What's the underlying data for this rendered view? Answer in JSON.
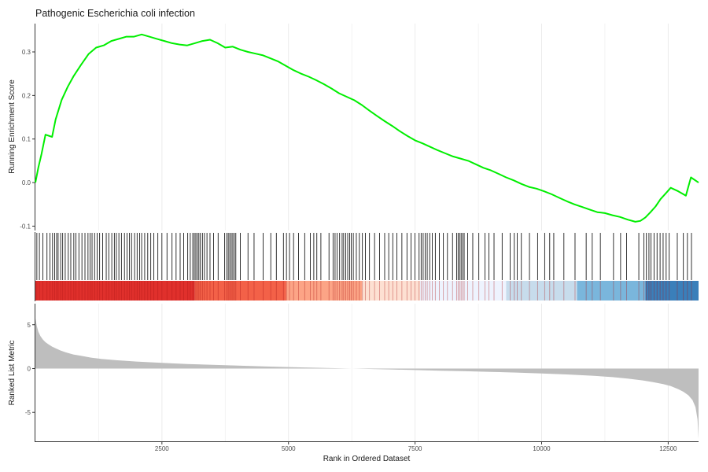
{
  "chart_data": {
    "type": "line",
    "title": "Pathogenic Escherichia coli infection",
    "xlabel": "Rank in Ordered Dataset",
    "xlim": [
      1,
      13100
    ],
    "x_ticks": [
      2500,
      5000,
      7500,
      10000,
      12500
    ],
    "x_tick_labels": [
      "2500",
      "5000",
      "7500",
      "10000",
      "12500"
    ],
    "grid": "vertical",
    "panels": [
      {
        "name": "running-score",
        "ylabel": "Running Enrichment Score",
        "ylim": [
          -0.11,
          0.365
        ],
        "y_ticks": [
          -0.1,
          0.0,
          0.1,
          0.2,
          0.3
        ],
        "y_tick_labels": [
          "-0.1",
          "0.0",
          "0.1",
          "0.2",
          "0.3"
        ],
        "line_color": "#00ee00",
        "series": [
          {
            "x": [
              1,
              60,
              120,
              200,
              330,
              400,
              520,
              640,
              760,
              900,
              1050,
              1200,
              1350,
              1500,
              1650,
              1800,
              1950,
              2100,
              2250,
              2400,
              2550,
              2700,
              2850,
              3000,
              3150,
              3300,
              3450,
              3600,
              3750,
              3900,
              4050,
              4200,
              4350,
              4500,
              4650,
              4800,
              4950,
              5100,
              5250,
              5400,
              5550,
              5700,
              5850,
              6000,
              6150,
              6300,
              6450,
              6600,
              6750,
              6900,
              7050,
              7200,
              7350,
              7500,
              7650,
              7800,
              7950,
              8100,
              8250,
              8400,
              8550,
              8700,
              8850,
              9000,
              9150,
              9300,
              9450,
              9600,
              9750,
              9900,
              10050,
              10200,
              10350,
              10500,
              10650,
              10800,
              10950,
              11100,
              11250,
              11400,
              11550,
              11700,
              11850,
              11950,
              12050,
              12150,
              12250,
              12350,
              12450,
              12550,
              12700,
              12850,
              12950,
              13100
            ],
            "values": [
              0.0,
              0.035,
              0.065,
              0.11,
              0.105,
              0.145,
              0.19,
              0.22,
              0.245,
              0.27,
              0.295,
              0.31,
              0.315,
              0.325,
              0.33,
              0.335,
              0.335,
              0.34,
              0.335,
              0.33,
              0.325,
              0.32,
              0.317,
              0.315,
              0.32,
              0.325,
              0.328,
              0.32,
              0.31,
              0.312,
              0.305,
              0.3,
              0.296,
              0.292,
              0.285,
              0.278,
              0.268,
              0.258,
              0.25,
              0.243,
              0.235,
              0.226,
              0.216,
              0.205,
              0.197,
              0.189,
              0.178,
              0.165,
              0.153,
              0.141,
              0.13,
              0.118,
              0.107,
              0.097,
              0.09,
              0.082,
              0.074,
              0.067,
              0.06,
              0.055,
              0.05,
              0.042,
              0.034,
              0.028,
              0.02,
              0.012,
              0.005,
              -0.003,
              -0.01,
              -0.014,
              -0.02,
              -0.027,
              -0.035,
              -0.043,
              -0.05,
              -0.056,
              -0.062,
              -0.068,
              -0.07,
              -0.075,
              -0.079,
              -0.085,
              -0.09,
              -0.088,
              -0.08,
              -0.068,
              -0.055,
              -0.038,
              -0.025,
              -0.012,
              -0.02,
              -0.03,
              0.012,
              0.0
            ]
          }
        ]
      },
      {
        "name": "gene-hits",
        "type": "rug",
        "hit_color": "#000000",
        "heat_colors": [
          "#e0302c",
          "#f36148",
          "#fca486",
          "#fde0d2",
          "#eef3fe",
          "#c7dcec",
          "#7ab6dc",
          "#3a7fba"
        ],
        "heat_boundaries": [
          1,
          3150,
          4950,
          6450,
          7600,
          9300,
          10700,
          12050,
          13100
        ]
      },
      {
        "name": "ranked-list",
        "ylabel": "Ranked List Metric",
        "ylim": [
          -8.3,
          7.4
        ],
        "y_ticks": [
          -5,
          0,
          5
        ],
        "y_tick_labels": [
          "-5",
          "0",
          "5"
        ],
        "fill_color": "#bebebe",
        "series": [
          {
            "x": [
              1,
              30,
              60,
              100,
              150,
              200,
              260,
              330,
              400,
              500,
              600,
              750,
              900,
              1100,
              1300,
              1600,
              2000,
              2500,
              3000,
              3500,
              4000,
              4500,
              5000,
              5500,
              6000,
              6500,
              7000,
              7500,
              8000,
              8500,
              9000,
              9500,
              10000,
              10500,
              11000,
              11400,
              11700,
              12000,
              12200,
              12400,
              12550,
              12700,
              12800,
              12900,
              12980,
              13040,
              13080,
              13100
            ],
            "values": [
              5.7,
              4.8,
              4.2,
              3.7,
              3.3,
              3.0,
              2.75,
              2.5,
              2.3,
              2.05,
              1.85,
              1.6,
              1.45,
              1.25,
              1.1,
              0.95,
              0.8,
              0.65,
              0.52,
              0.42,
              0.33,
              0.25,
              0.17,
              0.1,
              0.03,
              -0.04,
              -0.1,
              -0.17,
              -0.24,
              -0.31,
              -0.38,
              -0.46,
              -0.56,
              -0.67,
              -0.82,
              -0.98,
              -1.14,
              -1.36,
              -1.55,
              -1.78,
              -2.0,
              -2.35,
              -2.65,
              -3.05,
              -3.6,
              -4.4,
              -5.8,
              -8.0
            ]
          }
        ]
      }
    ],
    "gene_hit_ranks": [
      30,
      80,
      150,
      230,
      290,
      340,
      380,
      420,
      450,
      500,
      540,
      590,
      650,
      700,
      760,
      800,
      860,
      920,
      980,
      1040,
      1080,
      1120,
      1170,
      1220,
      1270,
      1330,
      1400,
      1450,
      1510,
      1560,
      1600,
      1650,
      1700,
      1760,
      1810,
      1860,
      1900,
      1960,
      2010,
      2060,
      2100,
      2160,
      2220,
      2280,
      2340,
      2420,
      2500,
      2600,
      2700,
      2780,
      2860,
      2930,
      3010,
      3060,
      3110,
      3140,
      3170,
      3200,
      3230,
      3260,
      3300,
      3340,
      3390,
      3450,
      3520,
      3610,
      3740,
      3780,
      3810,
      3840,
      3870,
      3900,
      3930,
      3960,
      4050,
      4200,
      4320,
      4500,
      4650,
      4760,
      4900,
      4960,
      5020,
      5100,
      5200,
      5320,
      5430,
      5500,
      5560,
      5640,
      5800,
      5880,
      5920,
      5960,
      6010,
      6060,
      6090,
      6130,
      6170,
      6210,
      6240,
      6280,
      6340,
      6400,
      6460,
      6520,
      6600,
      6700,
      6800,
      6900,
      6980,
      7060,
      7140,
      7240,
      7340,
      7420,
      7500,
      7580,
      7620,
      7660,
      7700,
      7740,
      7790,
      7840,
      7900,
      7980,
      8060,
      8140,
      8240,
      8320,
      8350,
      8380,
      8410,
      8440,
      8470,
      8540,
      8640,
      8760,
      8880,
      8960,
      9060,
      9220,
      9380,
      9460,
      9520,
      9600,
      9760,
      9920,
      10060,
      10160,
      10240,
      10440,
      10660,
      10880,
      11000,
      11160,
      11420,
      11560,
      11680,
      11920,
      12020,
      12070,
      12120,
      12160,
      12220,
      12280,
      12340,
      12400,
      12460,
      12520,
      12680,
      12800,
      12880,
      12960
    ]
  }
}
